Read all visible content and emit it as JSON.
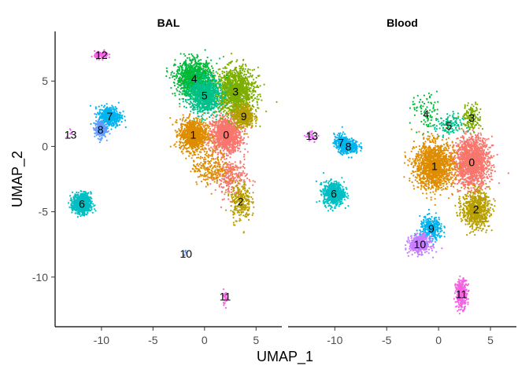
{
  "chart_data": {
    "type": "scatter",
    "xlabel": "UMAP_1",
    "ylabel": "UMAP_2",
    "xlim": [
      -14.5,
      7.5
    ],
    "ylim": [
      -13.8,
      8.8
    ],
    "xticks": [
      -10,
      -5,
      0,
      5
    ],
    "yticks": [
      -10,
      -5,
      0,
      5
    ],
    "tick_labels_x": [
      "-10",
      "-5",
      "0",
      "5"
    ],
    "tick_labels_y": [
      "-10",
      "-5",
      "0",
      "5"
    ],
    "grid": false,
    "legend": "none",
    "cluster_colors": {
      "0": "#F8766D",
      "1": "#DE8C00",
      "2": "#B79F00",
      "3": "#7CAE00",
      "4": "#00BA38",
      "5": "#00C08B",
      "6": "#00BFC4",
      "7": "#00B4F0",
      "8": "#619CFF",
      "9": "#C77CFF",
      "10": "#F564E3",
      "11": "#FF64B0",
      "12": "#00BC5A",
      "13": "#E76BF3"
    },
    "panels": [
      {
        "title": "BAL",
        "clusters": [
          {
            "id": "0",
            "label": "0",
            "x": 2.1,
            "y": 0.9,
            "sx": 1.4,
            "sy": 1.2,
            "n": 1100,
            "color": "#F8766D"
          },
          {
            "id": "0b",
            "label": "",
            "x": 2.6,
            "y": -2.4,
            "sx": 1.4,
            "sy": 1.4,
            "n": 260,
            "color": "#F8766D"
          },
          {
            "id": "1",
            "label": "1",
            "x": -1.1,
            "y": 0.9,
            "sx": 1.2,
            "sy": 1.1,
            "n": 900,
            "color": "#DE8C00"
          },
          {
            "id": "1b",
            "label": "",
            "x": 0.6,
            "y": -1.6,
            "sx": 1.6,
            "sy": 1.2,
            "n": 250,
            "color": "#DE8C00"
          },
          {
            "id": "2",
            "label": "2",
            "x": 3.5,
            "y": -4.2,
            "sx": 0.9,
            "sy": 1.4,
            "n": 260,
            "color": "#B79F00"
          },
          {
            "id": "3",
            "label": "3",
            "x": 3.0,
            "y": 4.2,
            "sx": 1.7,
            "sy": 1.6,
            "n": 1300,
            "color": "#7CAE00"
          },
          {
            "id": "4",
            "label": "4",
            "x": -1.0,
            "y": 5.2,
            "sx": 1.6,
            "sy": 1.2,
            "n": 1100,
            "color": "#00BA38"
          },
          {
            "id": "5",
            "label": "5",
            "x": 0.0,
            "y": 3.9,
            "sx": 1.4,
            "sy": 1.2,
            "n": 900,
            "color": "#00C08B"
          },
          {
            "id": "6",
            "label": "6",
            "x": -11.9,
            "y": -4.4,
            "sx": 0.8,
            "sy": 0.7,
            "n": 750,
            "color": "#00BFC4"
          },
          {
            "id": "7",
            "label": "7",
            "x": -9.2,
            "y": 2.3,
            "sx": 1.0,
            "sy": 0.7,
            "n": 450,
            "color": "#00B4F0"
          },
          {
            "id": "8",
            "label": "8",
            "x": -10.1,
            "y": 1.3,
            "sx": 0.5,
            "sy": 0.6,
            "n": 220,
            "color": "#619CFF"
          },
          {
            "id": "9",
            "label": "9",
            "x": 3.8,
            "y": 2.3,
            "sx": 0.9,
            "sy": 0.8,
            "n": 400,
            "color": "#B79F00"
          },
          {
            "id": "10",
            "label": "10",
            "x": -1.8,
            "y": -8.2,
            "sx": 0.2,
            "sy": 0.2,
            "n": 6,
            "color": "#619CFF"
          },
          {
            "id": "11",
            "label": "11",
            "x": 2.0,
            "y": -11.5,
            "sx": 0.2,
            "sy": 0.5,
            "n": 30,
            "color": "#F564E3"
          },
          {
            "id": "12",
            "label": "12",
            "x": -10.0,
            "y": 7.0,
            "sx": 0.6,
            "sy": 0.25,
            "n": 120,
            "color": "#F564E3"
          },
          {
            "id": "13",
            "label": "13",
            "x": -13.0,
            "y": 0.9,
            "sx": 0.3,
            "sy": 0.3,
            "n": 8,
            "color": "#E76BF3"
          }
        ]
      },
      {
        "title": "Blood",
        "clusters": [
          {
            "id": "0",
            "label": "0",
            "x": 3.2,
            "y": -1.2,
            "sx": 1.5,
            "sy": 1.7,
            "n": 1500,
            "color": "#F8766D"
          },
          {
            "id": "1",
            "label": "1",
            "x": -0.4,
            "y": -1.5,
            "sx": 1.7,
            "sy": 1.6,
            "n": 1400,
            "color": "#DE8C00"
          },
          {
            "id": "2",
            "label": "2",
            "x": 3.6,
            "y": -4.8,
            "sx": 1.2,
            "sy": 1.3,
            "n": 700,
            "color": "#B79F00"
          },
          {
            "id": "3",
            "label": "3",
            "x": 3.2,
            "y": 2.2,
            "sx": 0.8,
            "sy": 0.9,
            "n": 160,
            "color": "#7CAE00"
          },
          {
            "id": "4",
            "label": "4",
            "x": -1.2,
            "y": 2.5,
            "sx": 1.3,
            "sy": 1.4,
            "n": 80,
            "color": "#00BA38"
          },
          {
            "id": "5",
            "label": "5",
            "x": 1.0,
            "y": 1.6,
            "sx": 1.2,
            "sy": 0.8,
            "n": 120,
            "color": "#00C08B"
          },
          {
            "id": "6",
            "label": "6",
            "x": -10.1,
            "y": -3.6,
            "sx": 0.9,
            "sy": 0.8,
            "n": 650,
            "color": "#00BFC4"
          },
          {
            "id": "7",
            "label": "7",
            "x": -9.4,
            "y": 0.3,
            "sx": 0.6,
            "sy": 0.6,
            "n": 200,
            "color": "#00B4F0"
          },
          {
            "id": "8",
            "label": "8",
            "x": -8.7,
            "y": 0.0,
            "sx": 0.9,
            "sy": 0.5,
            "n": 300,
            "color": "#00B4F0"
          },
          {
            "id": "9",
            "label": "9",
            "x": -0.7,
            "y": -6.3,
            "sx": 1.0,
            "sy": 0.8,
            "n": 320,
            "color": "#00B4F0"
          },
          {
            "id": "10",
            "label": "10",
            "x": -1.8,
            "y": -7.5,
            "sx": 0.9,
            "sy": 0.6,
            "n": 450,
            "color": "#C77CFF"
          },
          {
            "id": "11",
            "label": "11",
            "x": 2.2,
            "y": -11.3,
            "sx": 0.5,
            "sy": 1.0,
            "n": 300,
            "color": "#F564E3"
          },
          {
            "id": "13",
            "label": "13",
            "x": -12.2,
            "y": 0.8,
            "sx": 0.6,
            "sy": 0.35,
            "n": 40,
            "color": "#E76BF3"
          }
        ]
      }
    ]
  }
}
